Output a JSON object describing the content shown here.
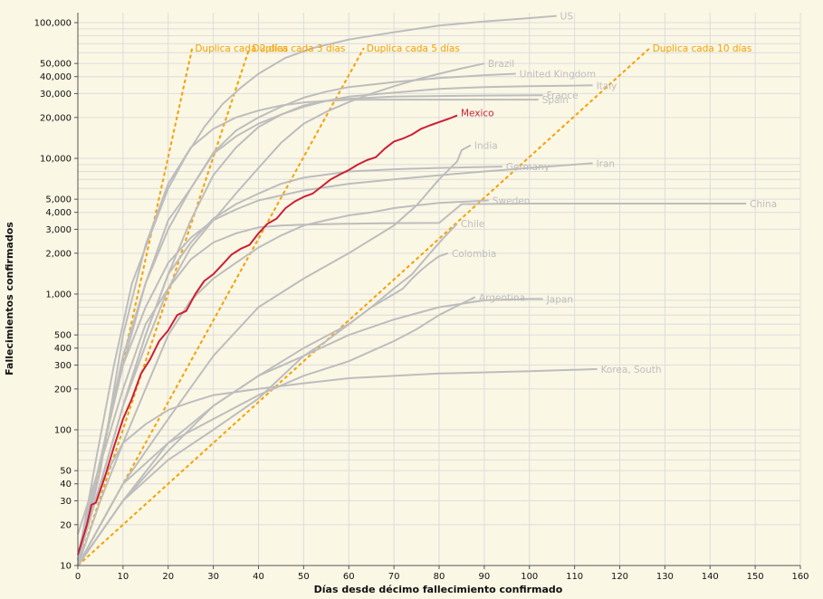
{
  "colors": {
    "background": "#fbf7e5",
    "highlight": "#cc1f36",
    "reference": "#f5a000",
    "country": "#bdbdbd"
  },
  "chart_data": {
    "type": "line",
    "title": "",
    "xlabel": "Días desde décimo fallecimiento confirmado",
    "ylabel": "Fallecimientos confirmados",
    "xlim": [
      0,
      160
    ],
    "ylim": [
      10,
      130000
    ],
    "yscale": "log",
    "x_ticks": [
      0,
      10,
      20,
      30,
      40,
      50,
      60,
      70,
      80,
      90,
      100,
      110,
      120,
      130,
      140,
      150,
      160
    ],
    "y_tick_values": [
      10,
      20,
      30,
      40,
      50,
      100,
      200,
      300,
      400,
      500,
      1000,
      2000,
      3000,
      4000,
      5000,
      10000,
      20000,
      30000,
      40000,
      50000,
      100000
    ],
    "y_tick_labels": [
      "10",
      "20",
      "30",
      "40",
      "50",
      "100",
      "200",
      "300",
      "400",
      "500",
      "1,000",
      "2,000",
      "3,000",
      "4,000",
      "5,000",
      "10,000",
      "20,000",
      "30,000",
      "40,000",
      "50,000",
      "100,000"
    ],
    "highlight": {
      "name": "Mexico",
      "points": [
        [
          0,
          12
        ],
        [
          2,
          20
        ],
        [
          3,
          28
        ],
        [
          4,
          29
        ],
        [
          6,
          45
        ],
        [
          8,
          75
        ],
        [
          10,
          120
        ],
        [
          12,
          170
        ],
        [
          14,
          260
        ],
        [
          16,
          330
        ],
        [
          18,
          450
        ],
        [
          20,
          540
        ],
        [
          22,
          700
        ],
        [
          24,
          750
        ],
        [
          26,
          1000
        ],
        [
          28,
          1250
        ],
        [
          30,
          1400
        ],
        [
          32,
          1650
        ],
        [
          34,
          1950
        ],
        [
          36,
          2150
        ],
        [
          38,
          2300
        ],
        [
          40,
          2800
        ],
        [
          42,
          3300
        ],
        [
          44,
          3600
        ],
        [
          46,
          4300
        ],
        [
          48,
          4800
        ],
        [
          50,
          5200
        ],
        [
          52,
          5500
        ],
        [
          54,
          6200
        ],
        [
          56,
          7000
        ],
        [
          58,
          7600
        ],
        [
          60,
          8200
        ],
        [
          62,
          9000
        ],
        [
          64,
          9700
        ],
        [
          66,
          10200
        ],
        [
          68,
          11800
        ],
        [
          70,
          13300
        ],
        [
          72,
          14000
        ],
        [
          74,
          15000
        ],
        [
          76,
          16500
        ],
        [
          78,
          17500
        ],
        [
          80,
          18500
        ],
        [
          82,
          19500
        ],
        [
          84,
          20700
        ]
      ]
    },
    "series": [
      {
        "name": "US",
        "points": [
          [
            0,
            11
          ],
          [
            4,
            60
          ],
          [
            8,
            300
          ],
          [
            12,
            1200
          ],
          [
            16,
            2700
          ],
          [
            20,
            6000
          ],
          [
            24,
            10500
          ],
          [
            28,
            17000
          ],
          [
            32,
            25000
          ],
          [
            36,
            33000
          ],
          [
            40,
            42000
          ],
          [
            46,
            55000
          ],
          [
            52,
            65000
          ],
          [
            60,
            75000
          ],
          [
            70,
            85000
          ],
          [
            80,
            95000
          ],
          [
            90,
            102000
          ],
          [
            100,
            108000
          ],
          [
            106,
            112000
          ]
        ]
      },
      {
        "name": "Brazil",
        "points": [
          [
            0,
            11
          ],
          [
            5,
            40
          ],
          [
            10,
            150
          ],
          [
            15,
            420
          ],
          [
            20,
            1100
          ],
          [
            25,
            2200
          ],
          [
            30,
            3500
          ],
          [
            35,
            5500
          ],
          [
            40,
            8500
          ],
          [
            45,
            13000
          ],
          [
            50,
            18000
          ],
          [
            55,
            22000
          ],
          [
            60,
            26000
          ],
          [
            65,
            30000
          ],
          [
            70,
            34000
          ],
          [
            75,
            38000
          ],
          [
            80,
            42000
          ],
          [
            85,
            46000
          ],
          [
            90,
            50000
          ]
        ]
      },
      {
        "name": "United Kingdom",
        "points": [
          [
            0,
            11
          ],
          [
            5,
            60
          ],
          [
            10,
            300
          ],
          [
            15,
            1200
          ],
          [
            20,
            3500
          ],
          [
            25,
            6000
          ],
          [
            30,
            11000
          ],
          [
            35,
            16000
          ],
          [
            40,
            20000
          ],
          [
            45,
            24000
          ],
          [
            50,
            28000
          ],
          [
            55,
            31000
          ],
          [
            60,
            33500
          ],
          [
            70,
            36500
          ],
          [
            80,
            39000
          ],
          [
            90,
            41000
          ],
          [
            97,
            42000
          ]
        ]
      },
      {
        "name": "Italy",
        "points": [
          [
            0,
            10
          ],
          [
            5,
            60
          ],
          [
            10,
            350
          ],
          [
            15,
            1200
          ],
          [
            20,
            3000
          ],
          [
            25,
            6000
          ],
          [
            30,
            10800
          ],
          [
            35,
            14500
          ],
          [
            40,
            18000
          ],
          [
            45,
            21000
          ],
          [
            50,
            24000
          ],
          [
            55,
            26500
          ],
          [
            60,
            28500
          ],
          [
            70,
            30500
          ],
          [
            80,
            32500
          ],
          [
            90,
            33500
          ],
          [
            100,
            34000
          ],
          [
            114,
            34500
          ]
        ]
      },
      {
        "name": "France",
        "points": [
          [
            0,
            11
          ],
          [
            5,
            40
          ],
          [
            10,
            150
          ],
          [
            15,
            500
          ],
          [
            20,
            1400
          ],
          [
            25,
            3500
          ],
          [
            30,
            7500
          ],
          [
            35,
            12000
          ],
          [
            40,
            17000
          ],
          [
            45,
            21000
          ],
          [
            50,
            24500
          ],
          [
            55,
            26500
          ],
          [
            60,
            27500
          ],
          [
            70,
            28500
          ],
          [
            80,
            28800
          ],
          [
            90,
            29000
          ],
          [
            103,
            29200
          ]
        ]
      },
      {
        "name": "Spain",
        "points": [
          [
            0,
            10
          ],
          [
            5,
            50
          ],
          [
            10,
            500
          ],
          [
            15,
            2300
          ],
          [
            20,
            6500
          ],
          [
            25,
            12000
          ],
          [
            30,
            16500
          ],
          [
            35,
            20000
          ],
          [
            40,
            22500
          ],
          [
            45,
            24500
          ],
          [
            50,
            25800
          ],
          [
            55,
            26500
          ],
          [
            60,
            27000
          ],
          [
            70,
            27100
          ],
          [
            80,
            27100
          ],
          [
            90,
            27100
          ],
          [
            102,
            27100
          ]
        ]
      },
      {
        "name": "India",
        "points": [
          [
            0,
            10
          ],
          [
            10,
            40
          ],
          [
            20,
            120
          ],
          [
            30,
            350
          ],
          [
            40,
            800
          ],
          [
            50,
            1300
          ],
          [
            60,
            2000
          ],
          [
            70,
            3200
          ],
          [
            75,
            4500
          ],
          [
            80,
            7000
          ],
          [
            84,
            9500
          ],
          [
            85,
            11500
          ],
          [
            87,
            12500
          ]
        ]
      },
      {
        "name": "Germany",
        "points": [
          [
            0,
            12
          ],
          [
            5,
            40
          ],
          [
            10,
            150
          ],
          [
            15,
            500
          ],
          [
            20,
            1400
          ],
          [
            25,
            2400
          ],
          [
            30,
            3600
          ],
          [
            35,
            4600
          ],
          [
            40,
            5500
          ],
          [
            45,
            6500
          ],
          [
            50,
            7200
          ],
          [
            60,
            8000
          ],
          [
            70,
            8300
          ],
          [
            80,
            8500
          ],
          [
            94,
            8700
          ]
        ]
      },
      {
        "name": "Iran",
        "points": [
          [
            0,
            12
          ],
          [
            5,
            60
          ],
          [
            10,
            300
          ],
          [
            15,
            800
          ],
          [
            20,
            1700
          ],
          [
            25,
            2600
          ],
          [
            30,
            3500
          ],
          [
            35,
            4200
          ],
          [
            40,
            4900
          ],
          [
            50,
            5800
          ],
          [
            60,
            6500
          ],
          [
            70,
            7000
          ],
          [
            80,
            7500
          ],
          [
            90,
            8000
          ],
          [
            100,
            8500
          ],
          [
            114,
            9200
          ]
        ]
      },
      {
        "name": "China",
        "points": [
          [
            0,
            17
          ],
          [
            5,
            56
          ],
          [
            10,
            200
          ],
          [
            15,
            600
          ],
          [
            20,
            1100
          ],
          [
            25,
            1800
          ],
          [
            30,
            2400
          ],
          [
            35,
            2800
          ],
          [
            40,
            3100
          ],
          [
            45,
            3200
          ],
          [
            50,
            3250
          ],
          [
            60,
            3300
          ],
          [
            70,
            3330
          ],
          [
            80,
            3340
          ],
          [
            85,
            4600
          ],
          [
            100,
            4640
          ],
          [
            120,
            4640
          ],
          [
            148,
            4640
          ]
        ]
      },
      {
        "name": "Sweden",
        "points": [
          [
            0,
            10
          ],
          [
            5,
            30
          ],
          [
            10,
            80
          ],
          [
            15,
            200
          ],
          [
            20,
            500
          ],
          [
            25,
            900
          ],
          [
            30,
            1300
          ],
          [
            35,
            1700
          ],
          [
            40,
            2200
          ],
          [
            45,
            2700
          ],
          [
            50,
            3200
          ],
          [
            55,
            3500
          ],
          [
            60,
            3800
          ],
          [
            65,
            4000
          ],
          [
            70,
            4300
          ],
          [
            75,
            4500
          ],
          [
            80,
            4700
          ],
          [
            91,
            4900
          ]
        ]
      },
      {
        "name": "Chile",
        "points": [
          [
            0,
            10
          ],
          [
            10,
            30
          ],
          [
            20,
            70
          ],
          [
            30,
            150
          ],
          [
            40,
            250
          ],
          [
            50,
            350
          ],
          [
            55,
            450
          ],
          [
            60,
            600
          ],
          [
            65,
            800
          ],
          [
            70,
            1100
          ],
          [
            74,
            1400
          ],
          [
            78,
            2000
          ],
          [
            81,
            2600
          ],
          [
            84,
            3300
          ]
        ]
      },
      {
        "name": "Colombia",
        "points": [
          [
            0,
            10
          ],
          [
            10,
            30
          ],
          [
            20,
            80
          ],
          [
            30,
            150
          ],
          [
            40,
            250
          ],
          [
            50,
            400
          ],
          [
            60,
            600
          ],
          [
            65,
            800
          ],
          [
            70,
            1000
          ],
          [
            72,
            1100
          ],
          [
            74,
            1300
          ],
          [
            76,
            1500
          ],
          [
            78,
            1700
          ],
          [
            80,
            1900
          ],
          [
            82,
            2000
          ]
        ]
      },
      {
        "name": "Argentina",
        "points": [
          [
            0,
            10
          ],
          [
            10,
            40
          ],
          [
            20,
            80
          ],
          [
            30,
            120
          ],
          [
            40,
            180
          ],
          [
            50,
            250
          ],
          [
            60,
            320
          ],
          [
            70,
            450
          ],
          [
            75,
            550
          ],
          [
            80,
            700
          ],
          [
            85,
            850
          ],
          [
            88,
            950
          ]
        ]
      },
      {
        "name": "Japan",
        "points": [
          [
            0,
            10
          ],
          [
            10,
            30
          ],
          [
            20,
            60
          ],
          [
            30,
            100
          ],
          [
            40,
            170
          ],
          [
            50,
            350
          ],
          [
            60,
            500
          ],
          [
            70,
            650
          ],
          [
            80,
            800
          ],
          [
            90,
            900
          ],
          [
            100,
            920
          ],
          [
            103,
            920
          ]
        ]
      },
      {
        "name": "Korea, South",
        "points": [
          [
            0,
            11
          ],
          [
            5,
            40
          ],
          [
            10,
            80
          ],
          [
            15,
            110
          ],
          [
            20,
            140
          ],
          [
            25,
            160
          ],
          [
            30,
            180
          ],
          [
            35,
            190
          ],
          [
            40,
            200
          ],
          [
            50,
            220
          ],
          [
            60,
            240
          ],
          [
            80,
            260
          ],
          [
            100,
            270
          ],
          [
            115,
            280
          ]
        ]
      }
    ],
    "reference_lines": [
      {
        "label": "Duplica cada 2 días",
        "doubling_days": 2
      },
      {
        "label": "Duplica cada 3 días",
        "doubling_days": 3
      },
      {
        "label": "Duplica cada 5 días",
        "doubling_days": 5
      },
      {
        "label": "Duplica cada 10 días",
        "doubling_days": 10
      }
    ]
  }
}
